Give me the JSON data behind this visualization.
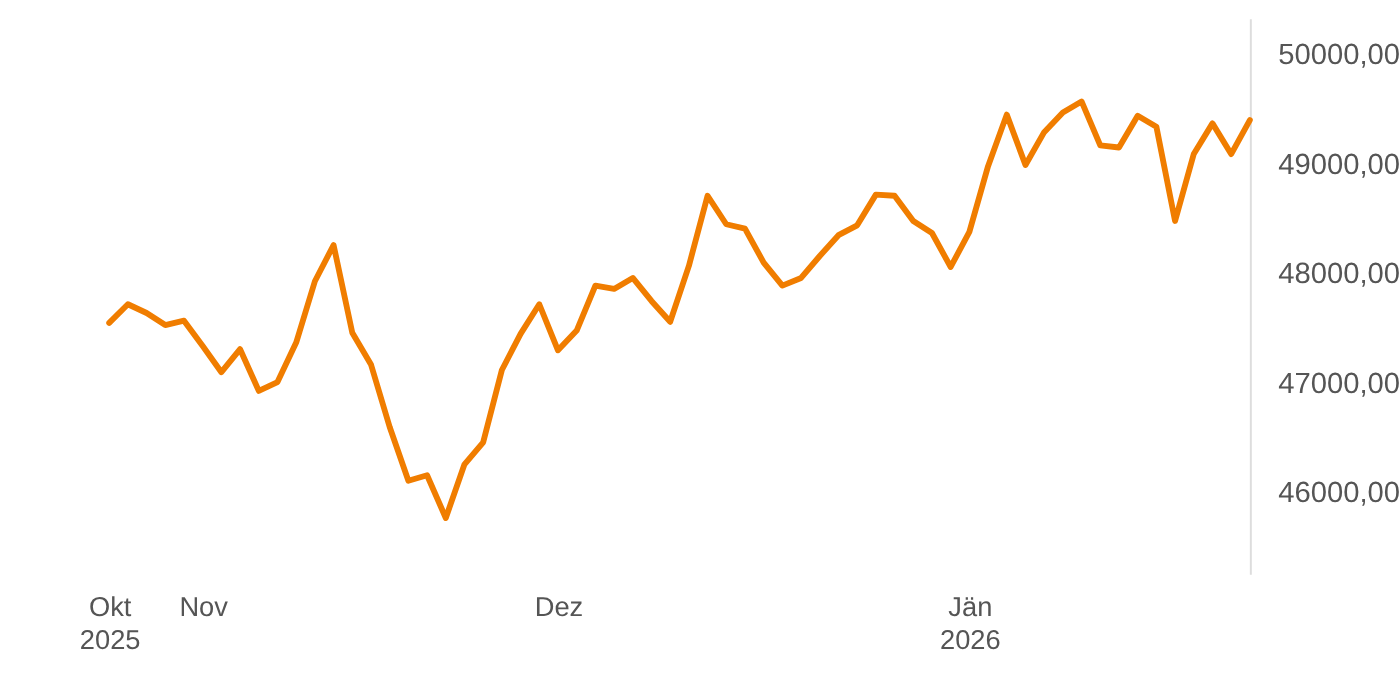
{
  "chart_data": {
    "type": "line",
    "categories": [
      "Okt 2025",
      null,
      null,
      null,
      null,
      "Nov",
      null,
      null,
      null,
      null,
      null,
      null,
      null,
      null,
      null,
      null,
      null,
      null,
      null,
      null,
      null,
      null,
      null,
      null,
      "Dez",
      null,
      null,
      null,
      null,
      null,
      null,
      null,
      null,
      null,
      null,
      null,
      null,
      null,
      null,
      null,
      null,
      null,
      null,
      null,
      null,
      null,
      "Jän 2026",
      null,
      null,
      null,
      null,
      null,
      null,
      null,
      null,
      null,
      null,
      null,
      null,
      null,
      null,
      null
    ],
    "series": [
      {
        "color": "#f07d00",
        "values": [
          47540,
          47710,
          47630,
          47520,
          47560,
          47330,
          47090,
          47300,
          46920,
          47000,
          47360,
          47920,
          48250,
          47450,
          47160,
          46590,
          46100,
          46150,
          45760,
          46250,
          46450,
          47110,
          47440,
          47710,
          47290,
          47470,
          47880,
          47850,
          47950,
          47740,
          47550,
          48060,
          48700,
          48440,
          48400,
          48090,
          47880,
          47950,
          48150,
          48340,
          48430,
          48710,
          48700,
          48470,
          48360,
          48050,
          48370,
          48970,
          49440,
          48980,
          49280,
          49460,
          49560,
          49160,
          49140,
          49430,
          49330,
          48470,
          49080,
          49360,
          49080,
          49390
        ]
      }
    ],
    "ylim": [
      45250,
      50320
    ],
    "yticks": [
      {
        "value": 46000,
        "label": "46000,00"
      },
      {
        "value": 47000,
        "label": "47000,00"
      },
      {
        "value": 48000,
        "label": "48000,00"
      },
      {
        "value": 49000,
        "label": "49000,00"
      },
      {
        "value": 50000,
        "label": "50000,00"
      }
    ],
    "grid": false,
    "legend": false,
    "line_style": "solid",
    "marker": "none"
  }
}
